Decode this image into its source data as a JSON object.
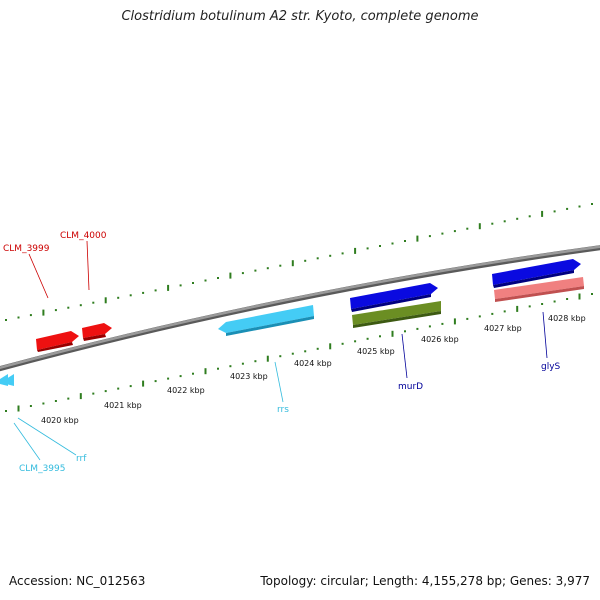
{
  "title": "Clostridium botulinum A2 str. Kyoto, complete genome",
  "footer": {
    "accession": "Accession: NC_012563",
    "summary": "Topology: circular; Length: 4,155,278 bp; Genes: 3,977"
  },
  "colors": {
    "backbone": "#8a8a8a",
    "tick": "#2f7d1f",
    "label_red": "#cc0000",
    "label_cyan": "#33bbdd",
    "label_blue": "#000099"
  },
  "scale_labels": [
    "4020 kbp",
    "4021 kbp",
    "4022 kbp",
    "4023 kbp",
    "4024 kbp",
    "4025 kbp",
    "4026 kbp",
    "4027 kbp",
    "4028 kbp"
  ],
  "genes": [
    {
      "id": "CLM_3999",
      "label": "CLM_3999",
      "color": "#ee1111",
      "strand": "+"
    },
    {
      "id": "CLM_4000",
      "label": "CLM_4000",
      "color": "#ee1111",
      "strand": "+"
    },
    {
      "id": "rrs",
      "label": "rrs",
      "color": "#44ccf5",
      "strand": "-"
    },
    {
      "id": "murD_upper",
      "label": "",
      "color": "#0a0ae0",
      "strand": "+"
    },
    {
      "id": "murD",
      "label": "murD",
      "color": "#6b8e23",
      "strand": "-"
    },
    {
      "id": "glyS_upper",
      "label": "",
      "color": "#0a0ae0",
      "strand": "+"
    },
    {
      "id": "glyS",
      "label": "glyS",
      "color": "#f08080",
      "strand": "-"
    },
    {
      "id": "rrf",
      "label": "rrf",
      "color": "#44ccf5",
      "strand": "-"
    },
    {
      "id": "CLM_3995",
      "label": "CLM_3995",
      "color": "#44ccf5",
      "strand": "-"
    }
  ]
}
